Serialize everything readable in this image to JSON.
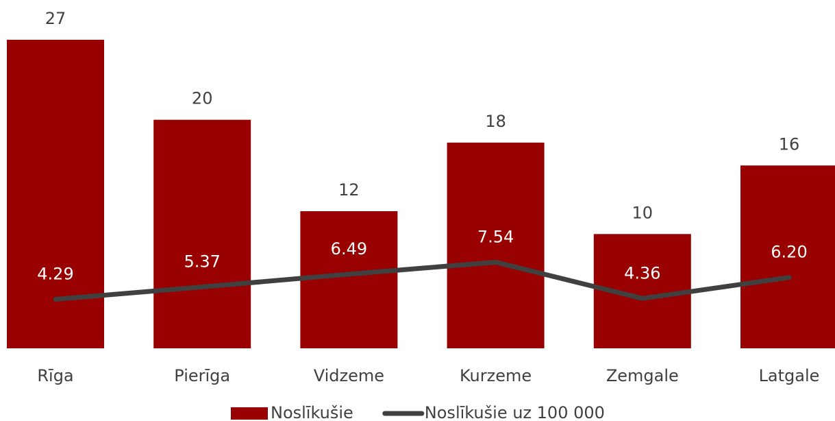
{
  "chart_data": {
    "type": "bar_line",
    "categories": [
      "Rīga",
      "Pierīga",
      "Vidzeme",
      "Kurzeme",
      "Zemgale",
      "Latgale"
    ],
    "series": [
      {
        "name": "Noslīkušie",
        "type": "bar",
        "color": "#990000",
        "values": [
          27,
          20,
          12,
          18,
          10,
          16
        ]
      },
      {
        "name": "Noslīkušie uz 100 000",
        "type": "line",
        "color": "#404040",
        "values": [
          4.29,
          5.37,
          6.49,
          7.54,
          4.36,
          6.2
        ],
        "value_labels": [
          "4.29",
          "5.37",
          "6.49",
          "7.54",
          "4.36",
          "6.20"
        ]
      }
    ],
    "ylim": [
      0,
      30
    ],
    "legend": "bottom"
  }
}
